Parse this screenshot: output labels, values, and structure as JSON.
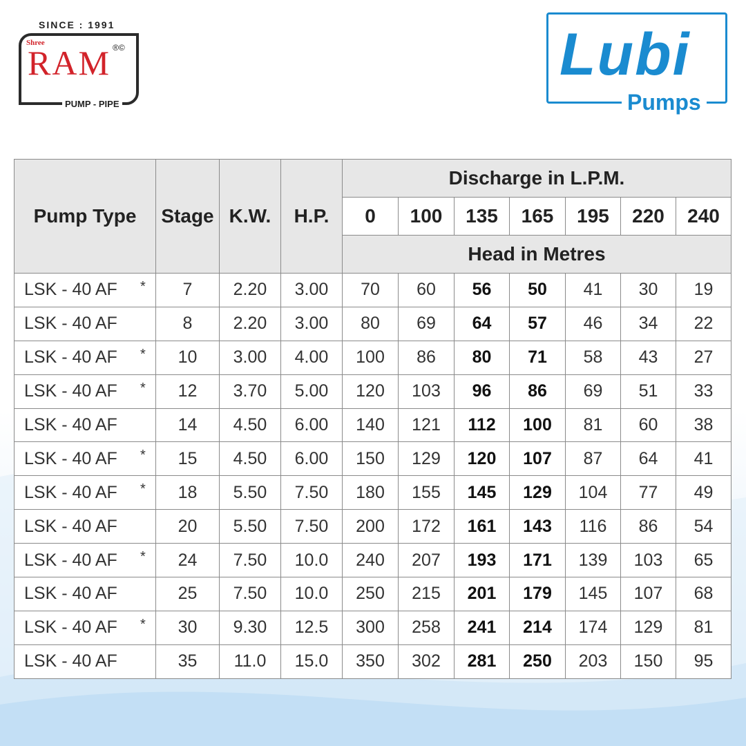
{
  "logo_left": {
    "since": "SINCE : 1991",
    "shree": "Shree",
    "brand": "RAM",
    "reg": "®©",
    "tagline": "PUMP - PIPE"
  },
  "logo_right": {
    "brand": "Lubi",
    "tagline": "Pumps"
  },
  "table": {
    "headers": {
      "pump_type": "Pump Type",
      "stage": "Stage",
      "kw": "K.W.",
      "hp": "H.P.",
      "discharge": "Discharge in L.P.M.",
      "discharge_values": [
        "0",
        "100",
        "135",
        "165",
        "195",
        "220",
        "240"
      ],
      "head": "Head in Metres"
    },
    "rows": [
      {
        "pump_type": "LSK - 40 AF",
        "star": "*",
        "cells": [
          "7",
          "2.20",
          "3.00",
          "70",
          "60",
          "56",
          "50",
          "41",
          "30",
          "19"
        ]
      },
      {
        "pump_type": "LSK - 40 AF",
        "cells": [
          "8",
          "2.20",
          "3.00",
          "80",
          "69",
          "64",
          "57",
          "46",
          "34",
          "22"
        ]
      },
      {
        "pump_type": "LSK - 40 AF",
        "star": "*",
        "cells": [
          "10",
          "3.00",
          "4.00",
          "100",
          "86",
          "80",
          "71",
          "58",
          "43",
          "27"
        ]
      },
      {
        "pump_type": "LSK - 40 AF",
        "star": "*",
        "cells": [
          "12",
          "3.70",
          "5.00",
          "120",
          "103",
          "96",
          "86",
          "69",
          "51",
          "33"
        ]
      },
      {
        "pump_type": "LSK - 40 AF",
        "cells": [
          "14",
          "4.50",
          "6.00",
          "140",
          "121",
          "112",
          "100",
          "81",
          "60",
          "38"
        ]
      },
      {
        "pump_type": "LSK - 40 AF",
        "star": "*",
        "cells": [
          "15",
          "4.50",
          "6.00",
          "150",
          "129",
          "120",
          "107",
          "87",
          "64",
          "41"
        ]
      },
      {
        "pump_type": "LSK - 40 AF",
        "star": "*",
        "cells": [
          "18",
          "5.50",
          "7.50",
          "180",
          "155",
          "145",
          "129",
          "104",
          "77",
          "49"
        ]
      },
      {
        "pump_type": "LSK - 40 AF",
        "cells": [
          "20",
          "5.50",
          "7.50",
          "200",
          "172",
          "161",
          "143",
          "116",
          "86",
          "54"
        ]
      },
      {
        "pump_type": "LSK - 40 AF",
        "star": "*",
        "cells": [
          "24",
          "7.50",
          "10.0",
          "240",
          "207",
          "193",
          "171",
          "139",
          "103",
          "65"
        ]
      },
      {
        "pump_type": "LSK - 40 AF",
        "cells": [
          "25",
          "7.50",
          "10.0",
          "250",
          "215",
          "201",
          "179",
          "145",
          "107",
          "68"
        ]
      },
      {
        "pump_type": "LSK - 40 AF",
        "star": "*",
        "cells": [
          "30",
          "9.30",
          "12.5",
          "300",
          "258",
          "241",
          "214",
          "174",
          "129",
          "81"
        ]
      },
      {
        "pump_type": "LSK - 40 AF",
        "cells": [
          "35",
          "11.0",
          "15.0",
          "350",
          "302",
          "281",
          "250",
          "203",
          "150",
          "95"
        ]
      }
    ]
  }
}
